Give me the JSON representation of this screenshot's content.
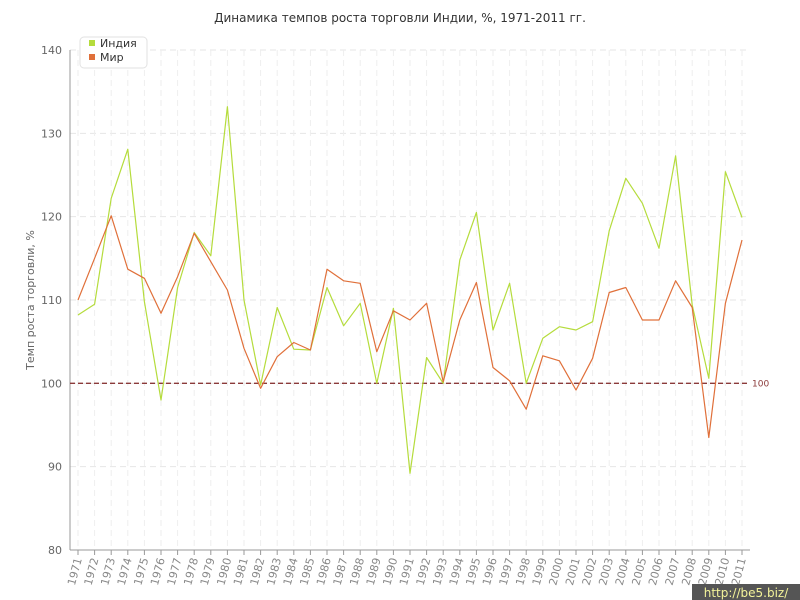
{
  "chart_data": {
    "type": "line",
    "title": "Динамика темпов роста торговли Индии, %, 1971-2011 гг.",
    "ylabel": "Темп роста торговли, %",
    "xlabel": "",
    "ylim": [
      80,
      140
    ],
    "yticks": [
      80,
      90,
      100,
      110,
      120,
      130,
      140
    ],
    "grid": true,
    "legend_position": "top-left",
    "categories": [
      "1971",
      "1972",
      "1973",
      "1974",
      "1975",
      "1976",
      "1977",
      "1978",
      "1979",
      "1980",
      "1981",
      "1982",
      "1983",
      "1984",
      "1985",
      "1986",
      "1987",
      "1988",
      "1989",
      "1990",
      "1991",
      "1992",
      "1993",
      "1994",
      "1995",
      "1996",
      "1997",
      "1998",
      "1999",
      "2000",
      "2001",
      "2002",
      "2003",
      "2004",
      "2005",
      "2006",
      "2007",
      "2008",
      "2009",
      "2010",
      "2011"
    ],
    "series": [
      {
        "name": "Индия",
        "color": "#b5dc3c",
        "values": [
          108.2,
          109.5,
          122.2,
          128.1,
          109.8,
          98.0,
          111.5,
          118.1,
          115.3,
          133.2,
          110.0,
          99.8,
          109.1,
          104.1,
          104.0,
          111.5,
          106.9,
          109.6,
          100.0,
          109.0,
          89.2,
          103.1,
          100.0,
          114.8,
          120.5,
          106.4,
          112.0,
          100.0,
          105.4,
          106.8,
          106.4,
          107.4,
          118.3,
          124.6,
          121.6,
          116.2,
          127.3,
          109.4,
          100.6,
          125.4,
          119.9
        ]
      },
      {
        "name": "Мир",
        "color": "#e0703a",
        "values": [
          110.0,
          115.0,
          120.1,
          113.7,
          112.6,
          108.4,
          112.8,
          118.0,
          114.6,
          111.2,
          104.2,
          99.4,
          103.2,
          104.9,
          104.0,
          113.7,
          112.3,
          112.0,
          103.8,
          108.7,
          107.6,
          109.6,
          100.2,
          107.6,
          112.1,
          101.9,
          100.3,
          96.9,
          103.3,
          102.7,
          99.2,
          103.0,
          110.9,
          111.5,
          107.6,
          107.6,
          112.3,
          109.1,
          93.5,
          109.6,
          117.2
        ]
      }
    ],
    "reference_line": {
      "value": 100,
      "label": "100",
      "color": "#8b3a3a"
    }
  },
  "watermark": "http://be5.biz/"
}
